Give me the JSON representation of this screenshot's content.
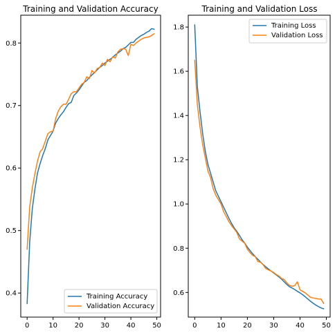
{
  "chart_data": [
    {
      "type": "line",
      "title": "Training and Validation Accuracy",
      "xlabel": "",
      "ylabel": "",
      "xlim": [
        -2.45,
        51.45
      ],
      "ylim": [
        0.3615,
        0.8445
      ],
      "xticks": [
        0,
        10,
        20,
        30,
        40,
        50
      ],
      "yticks": [
        0.4,
        0.5,
        0.6,
        0.7,
        0.8
      ],
      "ytick_labels": [
        "0.4",
        "0.5",
        "0.6",
        "0.7",
        "0.8"
      ],
      "legend_loc": "lower right",
      "series": [
        {
          "name": "Training Accuracy",
          "color": "#1f77b4",
          "x": [
            0,
            1,
            2,
            3,
            4,
            5,
            6,
            7,
            8,
            9,
            10,
            11,
            12,
            13,
            14,
            15,
            16,
            17,
            18,
            19,
            20,
            21,
            22,
            23,
            24,
            25,
            26,
            27,
            28,
            29,
            30,
            31,
            32,
            33,
            34,
            35,
            36,
            37,
            38,
            39,
            40,
            41,
            42,
            43,
            44,
            45,
            46,
            47,
            48,
            49
          ],
          "y": [
            0.383,
            0.482,
            0.535,
            0.566,
            0.592,
            0.607,
            0.62,
            0.631,
            0.645,
            0.652,
            0.659,
            0.672,
            0.679,
            0.685,
            0.69,
            0.697,
            0.703,
            0.705,
            0.716,
            0.72,
            0.725,
            0.731,
            0.737,
            0.74,
            0.745,
            0.749,
            0.753,
            0.757,
            0.761,
            0.764,
            0.768,
            0.771,
            0.774,
            0.777,
            0.781,
            0.784,
            0.787,
            0.791,
            0.793,
            0.797,
            0.801,
            0.801,
            0.806,
            0.809,
            0.812,
            0.814,
            0.817,
            0.819,
            0.823,
            0.822
          ]
        },
        {
          "name": "Validation Accuracy",
          "color": "#ff7f0e",
          "x": [
            0,
            1,
            2,
            3,
            4,
            5,
            6,
            7,
            8,
            9,
            10,
            11,
            12,
            13,
            14,
            15,
            16,
            17,
            18,
            19,
            20,
            21,
            22,
            23,
            24,
            25,
            26,
            27,
            28,
            29,
            30,
            31,
            32,
            33,
            34,
            35,
            36,
            37,
            38,
            39,
            40,
            41,
            42,
            43,
            44,
            45,
            46,
            47,
            48,
            49
          ],
          "y": [
            0.47,
            0.538,
            0.568,
            0.591,
            0.611,
            0.626,
            0.631,
            0.643,
            0.655,
            0.658,
            0.659,
            0.679,
            0.691,
            0.698,
            0.702,
            0.702,
            0.71,
            0.719,
            0.722,
            0.722,
            0.728,
            0.734,
            0.737,
            0.746,
            0.743,
            0.756,
            0.752,
            0.759,
            0.761,
            0.768,
            0.764,
            0.774,
            0.77,
            0.778,
            0.776,
            0.786,
            0.79,
            0.791,
            0.79,
            0.78,
            0.798,
            0.796,
            0.8,
            0.803,
            0.806,
            0.808,
            0.809,
            0.81,
            0.812,
            0.815
          ]
        }
      ]
    },
    {
      "type": "line",
      "title": "Training and Validation Loss",
      "xlabel": "",
      "ylabel": "",
      "xlim": [
        -2.45,
        51.45
      ],
      "ylim": [
        0.4885,
        1.8535
      ],
      "xticks": [
        0,
        10,
        20,
        30,
        40,
        50
      ],
      "yticks": [
        0.6,
        0.8,
        1.0,
        1.2,
        1.4,
        1.6,
        1.8
      ],
      "ytick_labels": [
        "0.6",
        "0.8",
        "1.0",
        "1.2",
        "1.4",
        "1.6",
        "1.8"
      ],
      "legend_loc": "upper right",
      "series": [
        {
          "name": "Training Loss",
          "color": "#1f77b4",
          "x": [
            0,
            1,
            2,
            3,
            4,
            5,
            6,
            7,
            8,
            9,
            10,
            11,
            12,
            13,
            14,
            15,
            16,
            17,
            18,
            19,
            20,
            21,
            22,
            23,
            24,
            25,
            26,
            27,
            28,
            29,
            30,
            31,
            32,
            33,
            34,
            35,
            36,
            37,
            38,
            39,
            40,
            41,
            42,
            43,
            44,
            45,
            46,
            47,
            48,
            49
          ],
          "y": [
            1.81,
            1.53,
            1.42,
            1.32,
            1.24,
            1.18,
            1.14,
            1.1,
            1.06,
            1.035,
            1.01,
            0.985,
            0.96,
            0.935,
            0.912,
            0.892,
            0.876,
            0.858,
            0.838,
            0.823,
            0.805,
            0.79,
            0.775,
            0.762,
            0.75,
            0.738,
            0.726,
            0.716,
            0.706,
            0.697,
            0.688,
            0.679,
            0.67,
            0.66,
            0.648,
            0.636,
            0.626,
            0.62,
            0.613,
            0.605,
            0.598,
            0.59,
            0.58,
            0.57,
            0.56,
            0.551,
            0.543,
            0.536,
            0.53,
            0.526
          ]
        },
        {
          "name": "Validation Loss",
          "color": "#ff7f0e",
          "x": [
            0,
            1,
            2,
            3,
            4,
            5,
            6,
            7,
            8,
            9,
            10,
            11,
            12,
            13,
            14,
            15,
            16,
            17,
            18,
            19,
            20,
            21,
            22,
            23,
            24,
            25,
            26,
            27,
            28,
            29,
            30,
            31,
            32,
            33,
            34,
            35,
            36,
            37,
            38,
            39,
            40,
            41,
            42,
            43,
            44,
            45,
            46,
            47,
            48,
            49
          ],
          "y": [
            1.65,
            1.45,
            1.35,
            1.27,
            1.21,
            1.15,
            1.12,
            1.07,
            1.04,
            1.02,
            1.0,
            0.965,
            0.943,
            0.92,
            0.902,
            0.887,
            0.871,
            0.842,
            0.832,
            0.822,
            0.796,
            0.78,
            0.768,
            0.762,
            0.74,
            0.737,
            0.725,
            0.708,
            0.702,
            0.697,
            0.69,
            0.681,
            0.674,
            0.663,
            0.658,
            0.643,
            0.632,
            0.628,
            0.631,
            0.648,
            0.612,
            0.605,
            0.598,
            0.588,
            0.578,
            0.575,
            0.573,
            0.57,
            0.57,
            0.55
          ]
        }
      ]
    }
  ]
}
